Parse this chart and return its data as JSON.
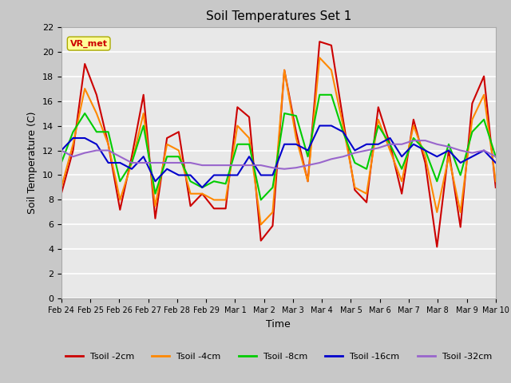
{
  "title": "Soil Temperatures Set 1",
  "xlabel": "Time",
  "ylabel": "Soil Temperature (C)",
  "ylim": [
    0,
    22
  ],
  "yticks": [
    0,
    2,
    4,
    6,
    8,
    10,
    12,
    14,
    16,
    18,
    20,
    22
  ],
  "annotation": "VR_met",
  "fig_bg_color": "#c8c8c8",
  "plot_bg_color": "#e8e8e8",
  "line_colors": {
    "Tsoil -2cm": "#cc0000",
    "Tsoil -4cm": "#ff8800",
    "Tsoil -8cm": "#00cc00",
    "Tsoil -16cm": "#0000cc",
    "Tsoil -32cm": "#9966cc"
  },
  "x_tick_labels": [
    "Feb 24",
    "Feb 25",
    "Feb 26",
    "Feb 27",
    "Feb 28",
    "Feb 29",
    "Mar 1",
    "Mar 2",
    "Mar 3",
    "Mar 4",
    "Mar 5",
    "Mar 6",
    "Mar 7",
    "Mar 8",
    "Mar 9",
    "Mar 10"
  ],
  "t2cm": [
    8.5,
    12.0,
    19.0,
    16.5,
    12.5,
    7.2,
    11.5,
    16.5,
    6.5,
    13.0,
    13.5,
    7.5,
    8.5,
    7.3,
    7.3,
    15.5,
    14.7,
    4.7,
    5.9,
    18.5,
    13.5,
    9.5,
    20.8,
    20.5,
    14.5,
    8.8,
    7.8,
    15.5,
    12.5,
    8.5,
    14.5,
    11.0,
    4.2,
    12.0,
    5.8,
    15.8,
    18.0,
    9.0
  ],
  "t4cm": [
    9.0,
    12.5,
    17.0,
    15.0,
    12.5,
    8.0,
    11.0,
    15.0,
    7.5,
    12.5,
    12.0,
    8.5,
    8.5,
    8.0,
    8.0,
    14.0,
    13.0,
    6.0,
    7.0,
    18.5,
    13.0,
    9.5,
    19.5,
    18.5,
    14.0,
    9.0,
    8.5,
    14.5,
    12.0,
    9.5,
    14.0,
    11.5,
    7.0,
    11.5,
    7.0,
    14.5,
    16.5,
    9.5
  ],
  "t8cm": [
    11.0,
    13.5,
    15.0,
    13.5,
    13.5,
    9.5,
    11.0,
    14.0,
    8.5,
    11.5,
    11.5,
    9.5,
    9.0,
    9.5,
    9.3,
    12.5,
    12.5,
    8.0,
    9.0,
    15.0,
    14.8,
    11.5,
    16.5,
    16.5,
    13.5,
    11.0,
    10.5,
    14.0,
    12.5,
    10.5,
    13.0,
    12.0,
    9.5,
    12.5,
    10.0,
    13.5,
    14.5,
    11.5
  ],
  "t16cm": [
    12.0,
    13.0,
    13.0,
    12.5,
    11.0,
    11.0,
    10.5,
    11.5,
    9.5,
    10.5,
    10.0,
    10.0,
    9.0,
    10.0,
    10.0,
    10.0,
    11.5,
    10.0,
    10.0,
    12.5,
    12.5,
    12.0,
    14.0,
    14.0,
    13.5,
    12.0,
    12.5,
    12.5,
    13.0,
    11.5,
    12.5,
    12.0,
    11.5,
    12.0,
    11.0,
    11.5,
    12.0,
    11.0
  ],
  "t32cm": [
    12.0,
    11.5,
    11.8,
    12.0,
    12.0,
    11.5,
    11.0,
    11.0,
    11.0,
    11.0,
    11.0,
    11.0,
    10.8,
    10.8,
    10.8,
    10.8,
    10.8,
    10.8,
    10.6,
    10.5,
    10.6,
    10.8,
    11.0,
    11.3,
    11.5,
    11.8,
    12.0,
    12.2,
    12.5,
    12.5,
    12.8,
    12.8,
    12.5,
    12.3,
    12.0,
    11.8,
    12.0,
    11.5
  ]
}
